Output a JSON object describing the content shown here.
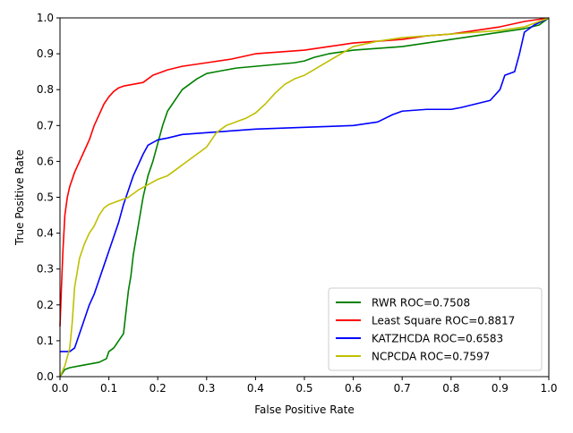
{
  "chart_data": {
    "type": "line",
    "title": "",
    "xlabel": "False Positive Rate",
    "ylabel": "True Positive Rate",
    "xlim": [
      0.0,
      1.0
    ],
    "ylim": [
      0.0,
      1.0
    ],
    "xticks": [
      "0.0",
      "0.1",
      "0.2",
      "0.3",
      "0.4",
      "0.5",
      "0.6",
      "0.7",
      "0.8",
      "0.9",
      "1.0"
    ],
    "yticks": [
      "0.0",
      "0.1",
      "0.2",
      "0.3",
      "0.4",
      "0.5",
      "0.6",
      "0.7",
      "0.8",
      "0.9",
      "1.0"
    ],
    "grid": false,
    "legend_position": "lower-right",
    "series": [
      {
        "name": "RWR ROC=0.7508",
        "color": "#008000",
        "x": [
          0.0,
          0.005,
          0.01,
          0.02,
          0.04,
          0.06,
          0.08,
          0.095,
          0.1,
          0.11,
          0.12,
          0.13,
          0.135,
          0.14,
          0.145,
          0.15,
          0.155,
          0.16,
          0.165,
          0.17,
          0.175,
          0.18,
          0.19,
          0.2,
          0.21,
          0.22,
          0.23,
          0.24,
          0.25,
          0.26,
          0.27,
          0.28,
          0.3,
          0.32,
          0.34,
          0.36,
          0.4,
          0.44,
          0.48,
          0.5,
          0.52,
          0.55,
          0.6,
          0.65,
          0.7,
          0.75,
          0.8,
          0.85,
          0.9,
          0.95,
          0.98,
          1.0
        ],
        "y": [
          0.0,
          0.01,
          0.02,
          0.025,
          0.03,
          0.035,
          0.04,
          0.05,
          0.07,
          0.08,
          0.1,
          0.12,
          0.18,
          0.24,
          0.28,
          0.34,
          0.38,
          0.42,
          0.46,
          0.5,
          0.53,
          0.56,
          0.6,
          0.65,
          0.7,
          0.74,
          0.76,
          0.78,
          0.8,
          0.81,
          0.82,
          0.83,
          0.845,
          0.85,
          0.855,
          0.86,
          0.865,
          0.87,
          0.875,
          0.88,
          0.89,
          0.9,
          0.91,
          0.915,
          0.92,
          0.93,
          0.94,
          0.95,
          0.96,
          0.97,
          0.98,
          1.0
        ]
      },
      {
        "name": "Least Square ROC=0.8817",
        "color": "#ff0000",
        "x": [
          0.0,
          0.003,
          0.006,
          0.01,
          0.015,
          0.02,
          0.03,
          0.04,
          0.05,
          0.06,
          0.07,
          0.08,
          0.09,
          0.1,
          0.11,
          0.12,
          0.13,
          0.15,
          0.17,
          0.18,
          0.19,
          0.2,
          0.22,
          0.25,
          0.3,
          0.35,
          0.4,
          0.45,
          0.5,
          0.55,
          0.6,
          0.65,
          0.7,
          0.75,
          0.8,
          0.85,
          0.9,
          0.95,
          1.0
        ],
        "y": [
          0.14,
          0.25,
          0.35,
          0.45,
          0.5,
          0.53,
          0.57,
          0.6,
          0.63,
          0.66,
          0.7,
          0.73,
          0.76,
          0.78,
          0.795,
          0.805,
          0.81,
          0.815,
          0.82,
          0.83,
          0.84,
          0.845,
          0.855,
          0.865,
          0.875,
          0.885,
          0.9,
          0.905,
          0.91,
          0.92,
          0.93,
          0.935,
          0.94,
          0.95,
          0.955,
          0.965,
          0.975,
          0.99,
          1.0
        ]
      },
      {
        "name": "KATZHCDA ROC=0.6583",
        "color": "#0000ff",
        "x": [
          0.0,
          0.01,
          0.02,
          0.03,
          0.04,
          0.05,
          0.06,
          0.07,
          0.08,
          0.09,
          0.1,
          0.11,
          0.12,
          0.13,
          0.14,
          0.15,
          0.16,
          0.17,
          0.18,
          0.2,
          0.22,
          0.25,
          0.3,
          0.35,
          0.4,
          0.5,
          0.6,
          0.65,
          0.68,
          0.7,
          0.75,
          0.8,
          0.82,
          0.85,
          0.88,
          0.9,
          0.91,
          0.93,
          0.94,
          0.95,
          0.97,
          1.0
        ],
        "y": [
          0.07,
          0.07,
          0.07,
          0.08,
          0.12,
          0.16,
          0.2,
          0.23,
          0.27,
          0.31,
          0.35,
          0.39,
          0.43,
          0.48,
          0.52,
          0.56,
          0.59,
          0.62,
          0.645,
          0.66,
          0.665,
          0.675,
          0.68,
          0.685,
          0.69,
          0.695,
          0.7,
          0.71,
          0.73,
          0.74,
          0.745,
          0.745,
          0.75,
          0.76,
          0.77,
          0.8,
          0.84,
          0.85,
          0.9,
          0.96,
          0.98,
          1.0
        ]
      },
      {
        "name": "NCPCDA ROC=0.7597",
        "color": "#bfbf00",
        "x": [
          0.0,
          0.01,
          0.02,
          0.025,
          0.03,
          0.04,
          0.05,
          0.06,
          0.07,
          0.08,
          0.09,
          0.1,
          0.12,
          0.14,
          0.16,
          0.18,
          0.2,
          0.22,
          0.24,
          0.26,
          0.28,
          0.3,
          0.32,
          0.34,
          0.36,
          0.38,
          0.4,
          0.42,
          0.44,
          0.46,
          0.48,
          0.5,
          0.55,
          0.6,
          0.65,
          0.7,
          0.75,
          0.8,
          0.85,
          0.9,
          0.95,
          1.0
        ],
        "y": [
          0.0,
          0.03,
          0.08,
          0.15,
          0.25,
          0.33,
          0.37,
          0.4,
          0.42,
          0.45,
          0.47,
          0.48,
          0.49,
          0.5,
          0.52,
          0.535,
          0.55,
          0.56,
          0.58,
          0.6,
          0.62,
          0.64,
          0.68,
          0.7,
          0.71,
          0.72,
          0.735,
          0.76,
          0.79,
          0.815,
          0.83,
          0.84,
          0.88,
          0.92,
          0.935,
          0.945,
          0.95,
          0.955,
          0.96,
          0.965,
          0.975,
          1.0
        ]
      }
    ]
  }
}
